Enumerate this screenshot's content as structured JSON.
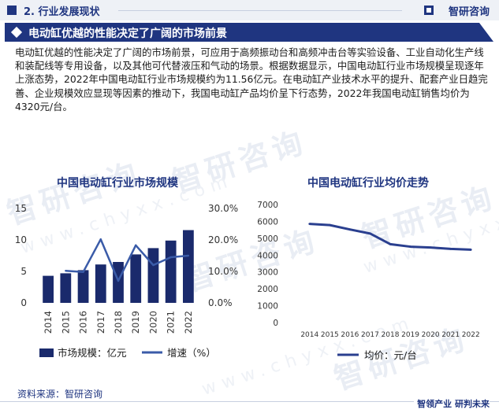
{
  "header": {
    "section": "2. 行业发展现状",
    "brand": "智研咨询"
  },
  "title": "电动缸优越的性能决定了广阔的市场前景",
  "paragraph": "电动缸优越的性能决定了广阔的市场前景，可应用于高频振动台和高频冲击台等实验设备、工业自动化生产线和装配线等专用设备，以及其他可代替液压和气动的场景。根据数据显示，中国电动缸行业市场规模呈现逐年上涨态势，2022年中国电动缸行业市场规模约为11.56亿元。在电动缸产业技术水平的提升、配套产业日趋完善、企业规模效应显现等因素的推动下，我国电动缸产品均价呈下行态势，2022年我国电动缸销售均价为4320元/台。",
  "watermark": {
    "text": "智研咨询",
    "url": "www.chyxx.com"
  },
  "colors": {
    "navy": "#1f3580",
    "bar": "#1a2a6c",
    "growth_line": "#3a5ba8",
    "price_line": "#2a3f8f"
  },
  "chart_data": [
    {
      "type": "bar",
      "title": "中国电动缸行业市场规模",
      "categories": [
        "2014",
        "2015",
        "2016",
        "2017",
        "2018",
        "2019",
        "2020",
        "2021",
        "2022"
      ],
      "series": [
        {
          "name": "市场规模：亿元",
          "type": "bar",
          "axis": "left",
          "values": [
            4.3,
            4.7,
            5.2,
            6.1,
            6.5,
            7.7,
            8.7,
            9.9,
            11.56
          ]
        },
        {
          "name": "增速（%）",
          "type": "line",
          "axis": "right",
          "values": [
            null,
            10.2,
            9.8,
            20.2,
            7.0,
            18.3,
            12.0,
            14.5,
            15.0
          ]
        }
      ],
      "ylim_left": [
        0,
        15
      ],
      "yticks_left": [
        "0",
        "5",
        "10",
        "15"
      ],
      "ylim_right": [
        0,
        30
      ],
      "yticks_right": [
        "0.0%",
        "10.0%",
        "20.0%",
        "30.0%"
      ],
      "legend": "bottom"
    },
    {
      "type": "line",
      "title": "中国电动缸行业均价走势",
      "categories": [
        "2014",
        "2015",
        "2016",
        "2017",
        "2018",
        "2019",
        "2020",
        "2021",
        "2022"
      ],
      "series": [
        {
          "name": "均价：元/台",
          "values": [
            5850,
            5780,
            5520,
            5280,
            4650,
            4500,
            4450,
            4370,
            4320
          ]
        }
      ],
      "ylim": [
        0,
        7000
      ],
      "yticks": [
        "0",
        "1000",
        "2000",
        "3000",
        "4000",
        "5000",
        "6000",
        "7000"
      ],
      "legend": "bottom"
    }
  ],
  "source": "资料来源：智研咨询",
  "footer": "智领产业 研判未来"
}
